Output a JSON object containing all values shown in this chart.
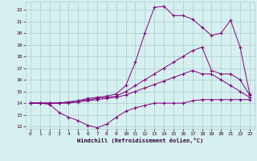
{
  "xlabel": "Windchill (Refroidissement éolien,°C)",
  "bg_color": "#d6f0f0",
  "grid_color": "#aacccc",
  "line_color": "#800080",
  "xlim": [
    -0.5,
    23.5
  ],
  "ylim": [
    11.8,
    22.7
  ],
  "xticks": [
    0,
    1,
    2,
    3,
    4,
    5,
    6,
    7,
    8,
    9,
    10,
    11,
    12,
    13,
    14,
    15,
    16,
    17,
    18,
    19,
    20,
    21,
    22,
    23
  ],
  "yticks": [
    12,
    13,
    14,
    15,
    16,
    17,
    18,
    19,
    20,
    21,
    22
  ],
  "line1_x": [
    0,
    1,
    2,
    3,
    4,
    5,
    6,
    7,
    8,
    9,
    10,
    11,
    12,
    13,
    14,
    15,
    16,
    17,
    18,
    19,
    20,
    21,
    22,
    23
  ],
  "line1_y": [
    14.0,
    14.0,
    13.9,
    13.2,
    12.8,
    12.5,
    12.1,
    11.9,
    12.2,
    12.8,
    13.3,
    13.6,
    13.8,
    14.0,
    14.0,
    14.0,
    14.0,
    14.2,
    14.3,
    14.3,
    14.3,
    14.3,
    14.3,
    14.3
  ],
  "line2_x": [
    0,
    1,
    2,
    3,
    4,
    5,
    6,
    7,
    8,
    9,
    10,
    11,
    12,
    13,
    14,
    15,
    16,
    17,
    18,
    19,
    20,
    21,
    22,
    23
  ],
  "line2_y": [
    14.0,
    14.0,
    14.0,
    14.0,
    14.0,
    14.1,
    14.2,
    14.3,
    14.4,
    14.5,
    14.7,
    15.0,
    15.3,
    15.6,
    15.9,
    16.2,
    16.5,
    16.8,
    16.5,
    16.5,
    16.0,
    15.5,
    15.0,
    14.5
  ],
  "line3_x": [
    0,
    1,
    2,
    3,
    4,
    5,
    6,
    7,
    8,
    9,
    10,
    11,
    12,
    13,
    14,
    15,
    16,
    17,
    18,
    19,
    20,
    21,
    22,
    23
  ],
  "line3_y": [
    14.0,
    14.0,
    14.0,
    14.0,
    14.1,
    14.2,
    14.3,
    14.4,
    14.5,
    14.6,
    15.0,
    15.5,
    16.0,
    16.5,
    17.0,
    17.5,
    18.0,
    18.5,
    18.8,
    16.8,
    16.5,
    16.5,
    16.0,
    14.7
  ],
  "line4_x": [
    0,
    1,
    2,
    3,
    4,
    5,
    6,
    7,
    8,
    9,
    10,
    11,
    12,
    13,
    14,
    15,
    16,
    17,
    18,
    19,
    20,
    21,
    22,
    23
  ],
  "line4_y": [
    14.0,
    14.0,
    14.0,
    14.0,
    14.1,
    14.2,
    14.4,
    14.5,
    14.6,
    14.8,
    15.5,
    17.5,
    20.0,
    22.2,
    22.3,
    21.5,
    21.5,
    21.2,
    20.5,
    19.8,
    20.0,
    21.1,
    18.8,
    14.8
  ]
}
